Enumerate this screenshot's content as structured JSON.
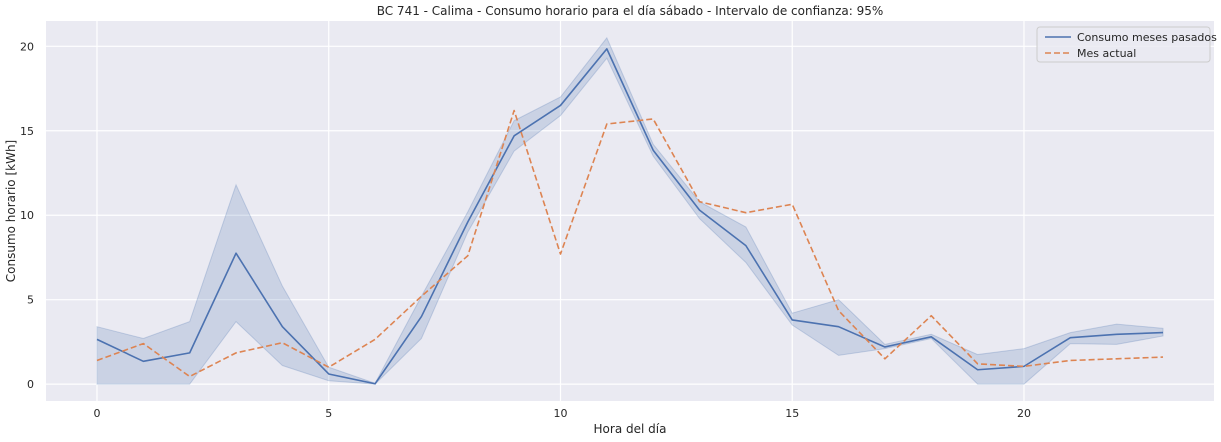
{
  "chart_data": {
    "type": "line",
    "title": "BC 741 - Calima - Consumo horario para el día sábado - Intervalo de confianza: 95%",
    "xlabel": "Hora del día",
    "ylabel": "Consumo horario [kWh]",
    "xlim": [
      -1.1,
      24.1
    ],
    "ylim": [
      -1.0,
      21.5
    ],
    "xticks": [
      0,
      5,
      10,
      15,
      20
    ],
    "yticks": [
      0,
      5,
      10,
      15,
      20
    ],
    "grid": true,
    "legend_position": "top-right",
    "x": [
      0,
      1,
      2,
      3,
      4,
      5,
      6,
      7,
      8,
      9,
      10,
      11,
      12,
      13,
      14,
      15,
      16,
      17,
      18,
      19,
      20,
      21,
      22,
      23
    ],
    "series": [
      {
        "name": "Consumo meses pasados",
        "color": "#4c72b0",
        "style": "solid",
        "values": [
          2.65,
          1.35,
          1.85,
          7.75,
          3.4,
          0.6,
          0.02,
          4.0,
          9.6,
          14.7,
          16.5,
          19.85,
          13.85,
          10.3,
          8.2,
          3.8,
          3.4,
          2.2,
          2.8,
          0.85,
          1.05,
          2.75,
          2.95,
          3.05
        ],
        "ci_lower": [
          0.0,
          0.0,
          0.0,
          3.7,
          1.1,
          0.2,
          0.0,
          2.7,
          9.0,
          13.8,
          15.9,
          19.3,
          13.5,
          9.8,
          7.2,
          3.5,
          1.7,
          2.1,
          2.7,
          0.0,
          0.0,
          2.4,
          2.35,
          2.85
        ],
        "ci_upper": [
          3.4,
          2.7,
          3.7,
          11.8,
          5.8,
          1.0,
          0.05,
          5.2,
          10.2,
          15.6,
          17.0,
          20.5,
          14.2,
          10.8,
          9.3,
          4.2,
          5.0,
          2.35,
          2.95,
          1.75,
          2.1,
          3.05,
          3.55,
          3.3
        ]
      },
      {
        "name": "Mes actual",
        "color": "#dd8452",
        "style": "dashed",
        "values": [
          1.4,
          2.4,
          0.45,
          1.85,
          2.45,
          1.0,
          2.65,
          5.2,
          7.6,
          16.2,
          7.7,
          15.4,
          15.7,
          10.8,
          10.15,
          10.65,
          4.35,
          1.5,
          4.05,
          1.2,
          1.05,
          1.4,
          1.5,
          1.6
        ]
      }
    ]
  }
}
